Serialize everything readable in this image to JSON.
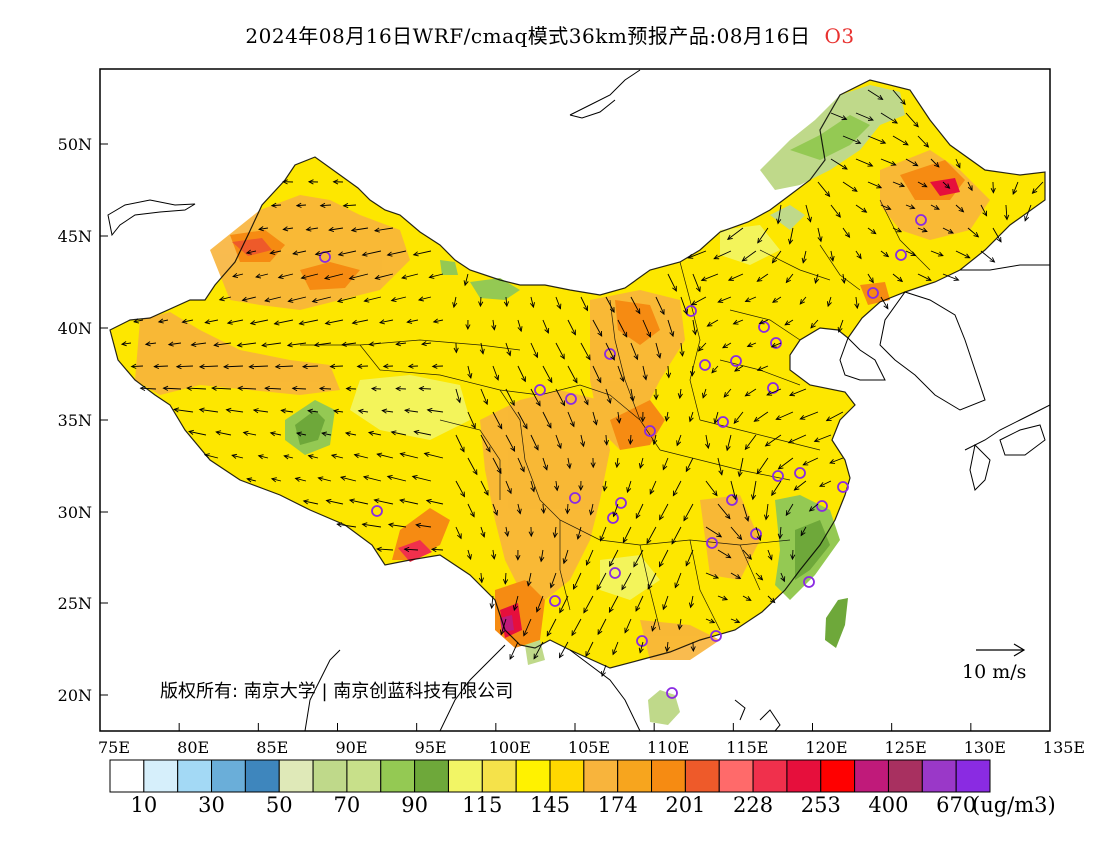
{
  "title": {
    "text": "2024年08月16日WRF/cmaq模式36km预报产品:08月16日",
    "product": "O3"
  },
  "axes": {
    "lon_ticks": [
      "75E",
      "80E",
      "85E",
      "90E",
      "95E",
      "100E",
      "105E",
      "110E",
      "115E",
      "120E",
      "125E",
      "130E",
      "135E"
    ],
    "lat_ticks": [
      "50N",
      "45N",
      "40N",
      "35N",
      "30N",
      "25N",
      "20N"
    ]
  },
  "copyright": "版权所有: 南京大学 | 南京创蓝科技有限公司",
  "wind_reference": "10 m/s",
  "colorbar": {
    "unit": "(ug/m3)",
    "labels": [
      "10",
      "30",
      "50",
      "70",
      "90",
      "115",
      "145",
      "174",
      "201",
      "228",
      "253",
      "400",
      "670"
    ],
    "colors": [
      "#ffffff",
      "#d6effb",
      "#a3d9f5",
      "#6aaed9",
      "#3e86bd",
      "#dfe9b8",
      "#bfd98a",
      "#c8e08a",
      "#94c953",
      "#6ea83a",
      "#f2f565",
      "#f5e24a",
      "#fff200",
      "#ffd800",
      "#f8b43c",
      "#f7a51e",
      "#f68b12",
      "#ee5a2a",
      "#ff6a6a",
      "#f0304c",
      "#e60f3c",
      "#ff0000",
      "#c01a7a",
      "#a83060",
      "#9a38c8",
      "#8a2be2"
    ]
  }
}
